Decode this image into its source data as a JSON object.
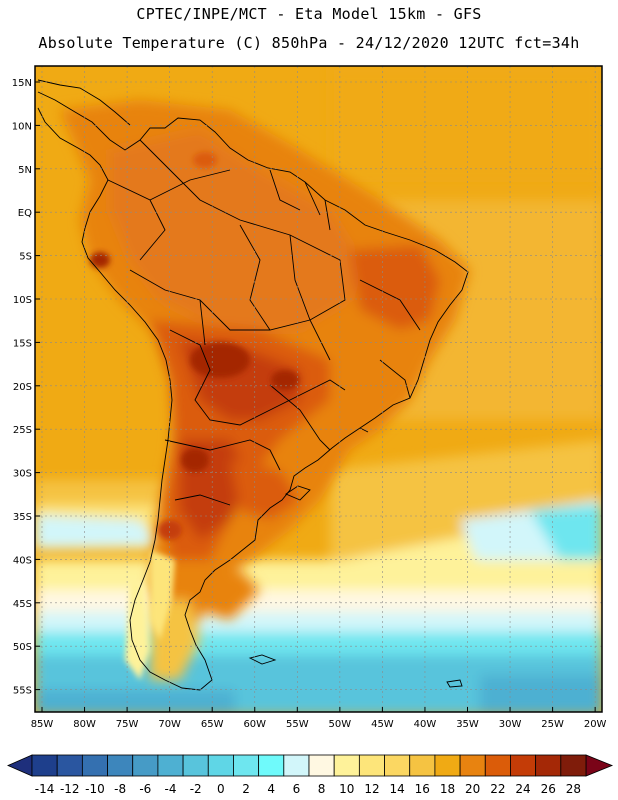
{
  "header": {
    "line1": "CPTEC/INPE/MCT -  Eta Model 15km - GFS",
    "line2": "Absolute Temperature (C) 850hPa - 24/12/2020 12UTC fct=34h"
  },
  "axes": {
    "lat_labels": [
      "15N",
      "10N",
      "5N",
      "EQ",
      "5S",
      "10S",
      "15S",
      "20S",
      "25S",
      "30S",
      "35S",
      "40S",
      "45S",
      "50S",
      "55S"
    ],
    "lon_labels": [
      "85W",
      "80W",
      "75W",
      "70W",
      "65W",
      "60W",
      "55W",
      "50W",
      "45W",
      "40W",
      "35W",
      "30W",
      "25W",
      "20W"
    ]
  },
  "colorbar": {
    "labels": [
      "-14",
      "-12",
      "-10",
      "-8",
      "-6",
      "-4",
      "-2",
      "0",
      "2",
      "4",
      "6",
      "8",
      "10",
      "12",
      "14",
      "16",
      "18",
      "20",
      "22",
      "24",
      "26",
      "28"
    ],
    "colors": [
      "#1e3f8c",
      "#2a56a0",
      "#3470b0",
      "#3d86bc",
      "#469bc6",
      "#4eb0d2",
      "#58c4dc",
      "#5fd6e6",
      "#6ee6ef",
      "#6ffafb",
      "#d2f6fa",
      "#fff8e2",
      "#fef29a",
      "#fde57a",
      "#fbd762",
      "#f5c342",
      "#f0aa14",
      "#e88310",
      "#db5c09",
      "#c43c07",
      "#a42806",
      "#7f1c0a"
    ],
    "under_color": "#1e2f7c",
    "over_color": "#7a0418"
  }
}
